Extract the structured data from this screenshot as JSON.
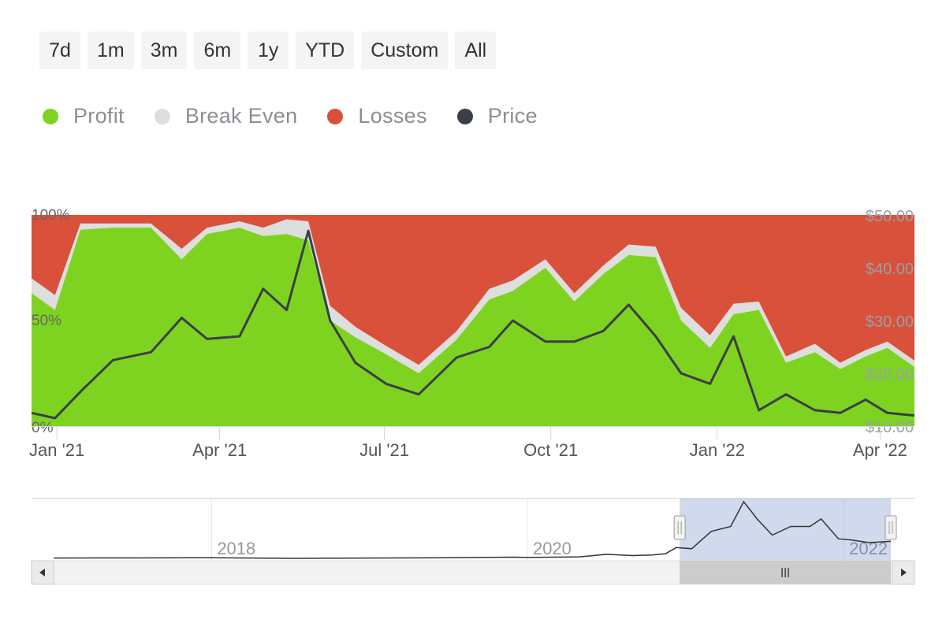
{
  "range_selector": {
    "buttons": [
      "7d",
      "1m",
      "3m",
      "6m",
      "1y",
      "YTD",
      "Custom",
      "All"
    ]
  },
  "legend": {
    "items": [
      {
        "label": "Profit",
        "color": "#7ed321"
      },
      {
        "label": "Break Even",
        "color": "#dedede"
      },
      {
        "label": "Losses",
        "color": "#d9513a"
      },
      {
        "label": "Price",
        "color": "#3a3f45"
      }
    ]
  },
  "chart_data": {
    "type": "area",
    "x_range": [
      "2020-12-18",
      "2022-04-20"
    ],
    "x_ticks": [
      {
        "date": "2021-01-01",
        "label": "Jan '21"
      },
      {
        "date": "2021-04-01",
        "label": "Apr '21"
      },
      {
        "date": "2021-07-01",
        "label": "Jul '21"
      },
      {
        "date": "2021-10-01",
        "label": "Oct '21"
      },
      {
        "date": "2022-01-01",
        "label": "Jan '22"
      },
      {
        "date": "2022-04-01",
        "label": "Apr '22"
      }
    ],
    "y_left": {
      "ticks": [
        "0%",
        "50%",
        "100%"
      ],
      "range": [
        0,
        100
      ]
    },
    "y_right": {
      "ticks": [
        "$10.00",
        "$20.00",
        "$30.00",
        "$40.00",
        "$50.00"
      ],
      "range": [
        10,
        50
      ]
    },
    "dates": [
      "2020-12-18",
      "2020-12-31",
      "2021-01-14",
      "2021-02-01",
      "2021-02-22",
      "2021-03-11",
      "2021-03-25",
      "2021-04-12",
      "2021-04-25",
      "2021-05-08",
      "2021-05-20",
      "2021-06-01",
      "2021-06-15",
      "2021-07-02",
      "2021-07-20",
      "2021-08-10",
      "2021-08-28",
      "2021-09-10",
      "2021-09-28",
      "2021-10-14",
      "2021-10-30",
      "2021-11-13",
      "2021-11-28",
      "2021-12-12",
      "2021-12-28",
      "2022-01-10",
      "2022-01-24",
      "2022-02-08",
      "2022-02-24",
      "2022-03-10",
      "2022-03-24",
      "2022-04-05",
      "2022-04-20"
    ],
    "series": [
      {
        "name": "Profit",
        "values": [
          63,
          55,
          93,
          94,
          94,
          79,
          91,
          94,
          90,
          91,
          88,
          50,
          42,
          34,
          25,
          41,
          60,
          64,
          75,
          59,
          72,
          81,
          80,
          50,
          37,
          53,
          55,
          30,
          35,
          27,
          33,
          37,
          28
        ]
      },
      {
        "name": "Break Even",
        "values": [
          7,
          7,
          3,
          2,
          2,
          5,
          3,
          3,
          4,
          7,
          9,
          7,
          5,
          4,
          4,
          4,
          5,
          5,
          4,
          4,
          4,
          5,
          5,
          6,
          6,
          5,
          4,
          3,
          4,
          3,
          3,
          3,
          3
        ]
      },
      {
        "name": "Losses",
        "values": [
          30,
          38,
          4,
          4,
          4,
          16,
          6,
          3,
          6,
          2,
          3,
          43,
          53,
          62,
          71,
          55,
          35,
          31,
          21,
          37,
          24,
          14,
          15,
          44,
          57,
          42,
          41,
          67,
          61,
          70,
          64,
          60,
          69
        ]
      },
      {
        "name": "Price",
        "values": [
          12.5,
          11.5,
          16.5,
          22.5,
          24,
          30.5,
          26.5,
          27,
          36,
          32,
          47,
          30,
          22,
          18,
          16,
          23,
          25,
          30,
          26,
          26,
          28,
          33,
          27,
          20,
          18,
          27,
          13,
          16,
          13,
          12.5,
          15,
          12.5,
          12
        ]
      }
    ]
  },
  "navigator": {
    "year_labels": [
      {
        "date": "2018-01-01",
        "label": "2018"
      },
      {
        "date": "2020-01-01",
        "label": "2020"
      },
      {
        "date": "2022-01-01",
        "label": "2022"
      }
    ],
    "selected_range": [
      "2020-12-18",
      "2022-04-20"
    ],
    "dates": [
      "2017-01-01",
      "2017-07-01",
      "2018-01-01",
      "2018-07-01",
      "2019-01-01",
      "2019-07-01",
      "2019-12-01",
      "2020-01-01",
      "2020-05-01",
      "2020-07-01",
      "2020-09-01",
      "2020-10-15",
      "2020-11-15",
      "2020-12-10",
      "2021-01-15",
      "2021-03-01",
      "2021-04-15",
      "2021-05-15",
      "2021-06-15",
      "2021-07-20",
      "2021-09-01",
      "2021-10-15",
      "2021-11-10",
      "2021-12-20",
      "2022-01-20",
      "2022-03-01",
      "2022-04-20"
    ],
    "values": [
      1.5,
      1.6,
      1.8,
      1.3,
      1.5,
      1.7,
      2.2,
      2.0,
      2.5,
      4.5,
      3.5,
      4.0,
      5.0,
      10,
      9,
      23,
      27,
      47,
      33,
      20,
      27,
      27,
      33,
      17,
      16,
      14,
      15
    ]
  },
  "scrollbar": {
    "grip_icon": "grip-lines-icon",
    "left_icon": "arrow-left-icon",
    "right_icon": "arrow-right-icon"
  }
}
